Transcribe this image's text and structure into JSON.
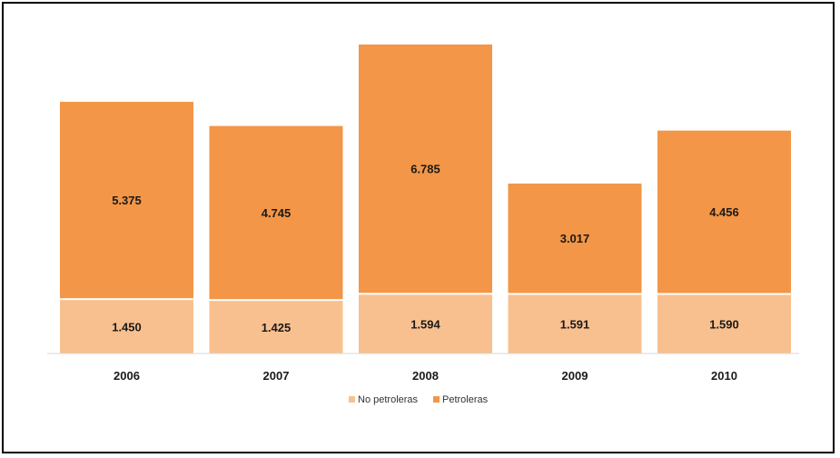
{
  "chart_data": {
    "type": "bar",
    "stacked": true,
    "categories": [
      "2006",
      "2007",
      "2008",
      "2009",
      "2010"
    ],
    "series": [
      {
        "name": "No petroleras",
        "values": [
          1450,
          1425,
          1594,
          1591,
          1590
        ],
        "labels": [
          "1.450",
          "1.425",
          "1.594",
          "1.591",
          "1.590"
        ],
        "color": "#f9c08f"
      },
      {
        "name": "Petroleras",
        "values": [
          5375,
          4745,
          6785,
          3017,
          4456
        ],
        "labels": [
          "5.375",
          "4.745",
          "6.785",
          "3.017",
          "4.456"
        ],
        "color": "#f39647"
      }
    ],
    "ylim": [
      0,
      8379
    ],
    "grid": false,
    "legend": "bottom",
    "title": "",
    "xlabel": "",
    "ylabel": ""
  }
}
